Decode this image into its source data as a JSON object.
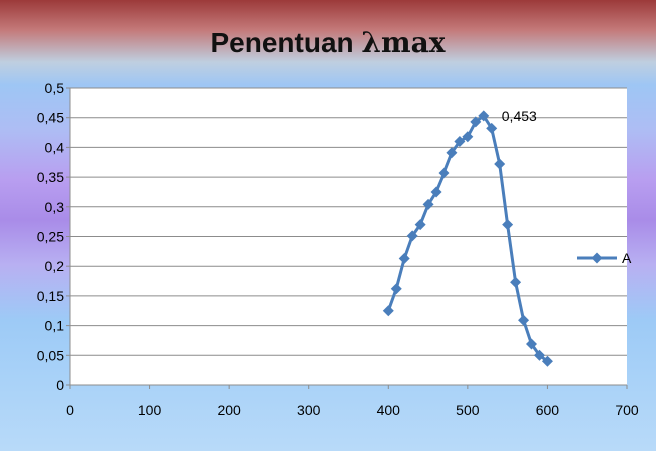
{
  "chart_data": {
    "type": "scatter",
    "title_prefix": "Penentuan ",
    "title_symbol": "λmax",
    "xlim": [
      0,
      700
    ],
    "ylim": [
      0,
      0.5
    ],
    "x_ticks": [
      "0",
      "100",
      "200",
      "300",
      "400",
      "500",
      "600",
      "700"
    ],
    "y_ticks": [
      "0",
      "0,05",
      "0,1",
      "0,15",
      "0,2",
      "0,25",
      "0,3",
      "0,35",
      "0,4",
      "0,45",
      "0,5"
    ],
    "grid": true,
    "legend_position": "right",
    "series": [
      {
        "name": "A",
        "color": "#4a7ebb",
        "x": [
          400,
          410,
          420,
          430,
          440,
          450,
          460,
          470,
          480,
          490,
          500,
          510,
          520,
          530,
          540,
          550,
          560,
          570,
          580,
          590,
          600
        ],
        "y": [
          0.125,
          0.162,
          0.213,
          0.251,
          0.27,
          0.304,
          0.325,
          0.357,
          0.391,
          0.41,
          0.418,
          0.443,
          0.453,
          0.432,
          0.372,
          0.27,
          0.173,
          0.109,
          0.069,
          0.05,
          0.04
        ]
      }
    ],
    "annotation": {
      "text": "0,453",
      "x": 520,
      "y": 0.453
    }
  }
}
